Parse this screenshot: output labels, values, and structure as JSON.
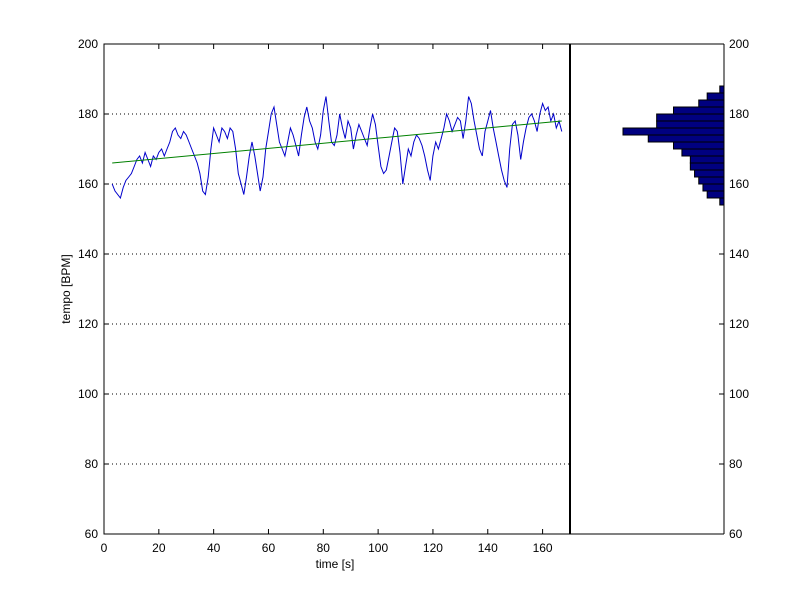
{
  "chart_data": [
    {
      "type": "line",
      "title": "",
      "xlabel": "time [s]",
      "ylabel": "tempo [BPM]",
      "xlim": [
        0,
        170
      ],
      "ylim": [
        60,
        200
      ],
      "xticks": [
        "0",
        "20",
        "40",
        "60",
        "80",
        "100",
        "120",
        "140",
        "160"
      ],
      "yticks": [
        "60",
        "80",
        "100",
        "120",
        "140",
        "160",
        "180",
        "200"
      ],
      "grid": "horizontal dotted",
      "series": [
        {
          "color": "#0000cc",
          "x": [
            3,
            4,
            5,
            6,
            7,
            8,
            9,
            10,
            11,
            12,
            13,
            14,
            15,
            16,
            17,
            18,
            19,
            20,
            21,
            22,
            23,
            24,
            25,
            26,
            27,
            28,
            29,
            30,
            31,
            32,
            33,
            34,
            35,
            36,
            37,
            38,
            39,
            40,
            41,
            42,
            43,
            44,
            45,
            46,
            47,
            48,
            49,
            50,
            51,
            52,
            53,
            54,
            55,
            56,
            57,
            58,
            59,
            60,
            61,
            62,
            63,
            64,
            65,
            66,
            67,
            68,
            69,
            70,
            71,
            72,
            73,
            74,
            75,
            76,
            77,
            78,
            79,
            80,
            81,
            82,
            83,
            84,
            85,
            86,
            87,
            88,
            89,
            90,
            91,
            92,
            93,
            94,
            95,
            96,
            97,
            98,
            99,
            100,
            101,
            102,
            103,
            104,
            105,
            106,
            107,
            108,
            109,
            110,
            111,
            112,
            113,
            114,
            115,
            116,
            117,
            118,
            119,
            120,
            121,
            122,
            123,
            124,
            125,
            126,
            127,
            128,
            129,
            130,
            131,
            132,
            133,
            134,
            135,
            136,
            137,
            138,
            139,
            140,
            141,
            142,
            143,
            144,
            145,
            146,
            147,
            148,
            149,
            150,
            151,
            152,
            153,
            154,
            155,
            156,
            157,
            158,
            159,
            160,
            161,
            162,
            163,
            164,
            165,
            166,
            167
          ],
          "y": [
            160,
            158,
            157,
            156,
            159,
            161,
            162,
            163,
            165,
            167,
            168,
            166,
            169,
            167,
            165,
            168,
            167,
            169,
            170,
            168,
            170,
            172,
            175,
            176,
            174,
            173,
            175,
            174,
            172,
            170,
            168,
            166,
            163,
            158,
            157,
            162,
            170,
            176,
            174,
            172,
            176,
            175,
            173,
            176,
            175,
            170,
            163,
            160,
            157,
            162,
            168,
            172,
            168,
            163,
            158,
            162,
            170,
            175,
            180,
            182,
            177,
            172,
            170,
            168,
            172,
            176,
            174,
            171,
            168,
            174,
            179,
            182,
            178,
            176,
            172,
            170,
            174,
            181,
            185,
            178,
            172,
            171,
            174,
            180,
            176,
            173,
            178,
            176,
            170,
            174,
            177,
            175,
            173,
            171,
            176,
            180,
            177,
            171,
            165,
            163,
            164,
            168,
            172,
            176,
            175,
            169,
            160,
            165,
            170,
            168,
            172,
            174,
            173,
            171,
            168,
            164,
            161,
            168,
            172,
            170,
            173,
            176,
            180,
            178,
            175,
            177,
            179,
            178,
            173,
            178,
            185,
            183,
            178,
            174,
            170,
            168,
            175,
            178,
            181,
            176,
            172,
            168,
            164,
            161,
            159,
            170,
            177,
            178,
            174,
            167,
            172,
            176,
            179,
            180,
            178,
            175,
            180,
            183,
            181,
            182,
            178,
            180,
            176,
            178,
            175
          ]
        },
        {
          "color": "#008000",
          "x": [
            3,
            167
          ],
          "y": [
            166,
            178
          ]
        }
      ]
    },
    {
      "type": "bar",
      "orientation": "horizontal",
      "title": "",
      "ylim": [
        60,
        200
      ],
      "yticks": [
        "60",
        "80",
        "100",
        "120",
        "140",
        "160",
        "180",
        "200"
      ],
      "color": "#000080",
      "bins": [
        155,
        157,
        159,
        161,
        163,
        165,
        167,
        169,
        171,
        173,
        175,
        177,
        179,
        181,
        183,
        185,
        187
      ],
      "values": [
        1,
        4,
        5,
        6,
        7,
        8,
        8,
        10,
        12,
        18,
        24,
        16,
        16,
        12,
        6,
        4,
        1
      ]
    }
  ]
}
